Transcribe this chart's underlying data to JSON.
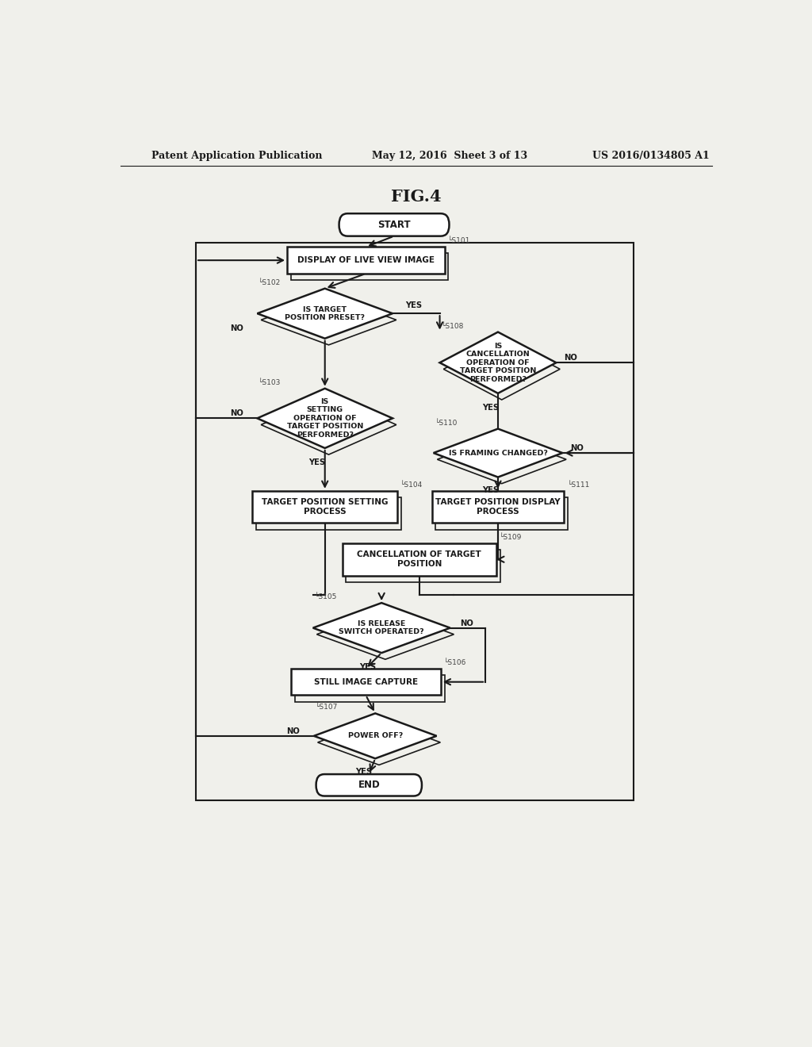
{
  "bg_color": "#f0f0eb",
  "title": "FIG.4",
  "header_left": "Patent Application Publication",
  "header_center": "May 12, 2016  Sheet 3 of 13",
  "header_right": "US 2016/0134805 A1",
  "lc": "#1a1a1a",
  "tc": "#1a1a1a",
  "fc": "#ffffff",
  "sc": "#444444"
}
